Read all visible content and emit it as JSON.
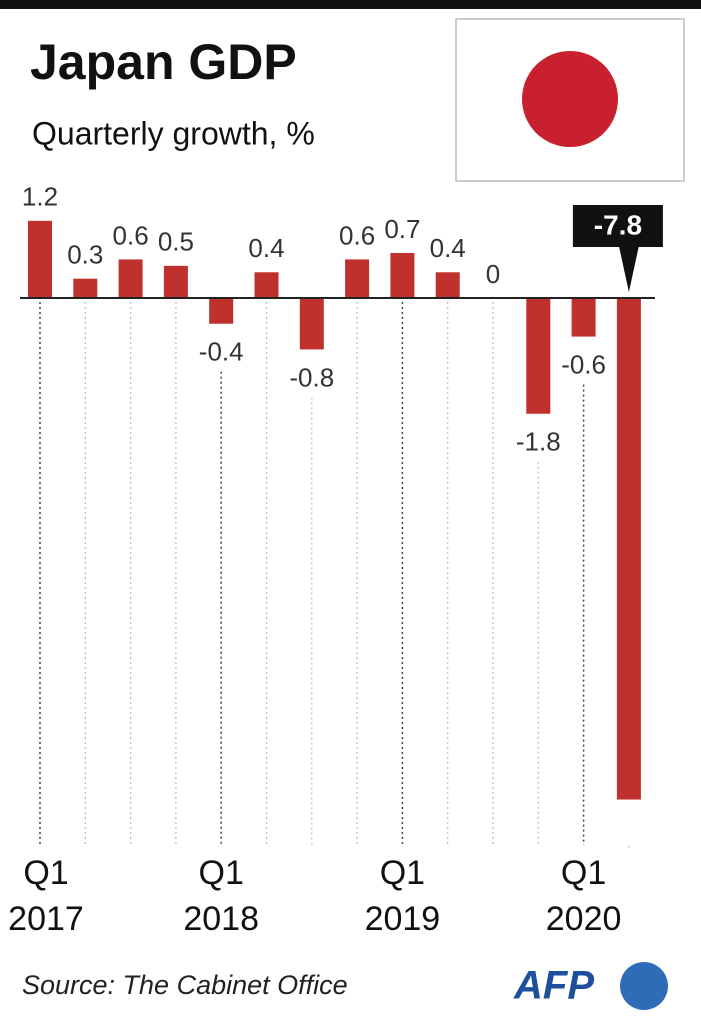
{
  "chart_data": {
    "type": "bar",
    "title": "Japan GDP",
    "subtitle": "Quarterly growth, %",
    "categories": [
      "Q1 2017",
      null,
      null,
      null,
      "Q1 2018",
      null,
      null,
      null,
      "Q1 2019",
      null,
      null,
      null,
      "Q1 2020",
      null
    ],
    "values": [
      1.2,
      0.3,
      0.6,
      0.5,
      -0.4,
      0.4,
      -0.8,
      0.6,
      0.7,
      0.4,
      0,
      -1.8,
      -0.6,
      -7.8
    ],
    "color": "#c0302c",
    "source": "Source: The Cabinet Office",
    "logo": "AFP"
  }
}
